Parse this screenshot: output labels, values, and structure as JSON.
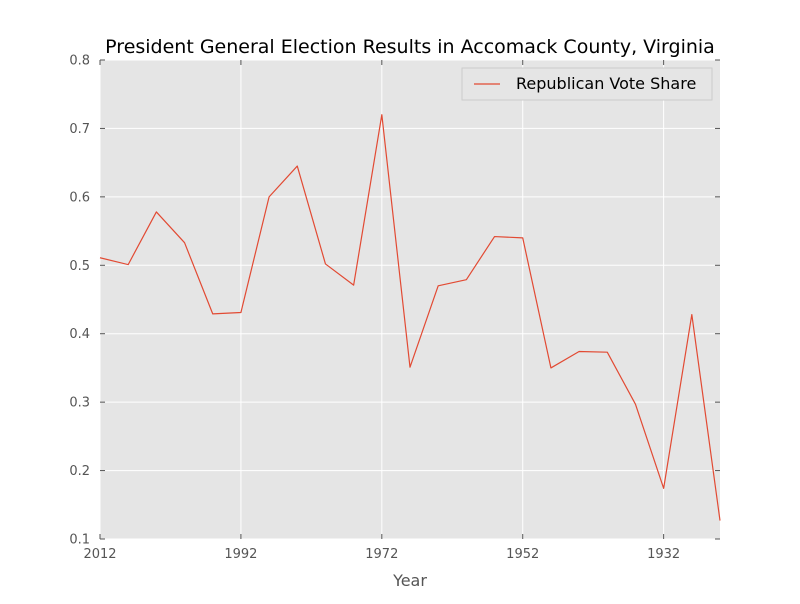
{
  "chart_data": {
    "type": "line",
    "title": "President General Election Results in Accomack County, Virginia",
    "xlabel": "Year",
    "ylabel": "",
    "x_reversed": true,
    "xlim": [
      2012,
      1924
    ],
    "ylim": [
      0.1,
      0.8
    ],
    "xticks": [
      2012,
      1992,
      1972,
      1952,
      1932
    ],
    "yticks": [
      0.1,
      0.2,
      0.3,
      0.4,
      0.5,
      0.6,
      0.7,
      0.8
    ],
    "grid": true,
    "legend_position": "top-right",
    "background_color": "#e5e5e5",
    "grid_color": "#ffffff",
    "series": [
      {
        "name": "Republican Vote Share",
        "color": "#e24a33",
        "x": [
          2012,
          2008,
          2004,
          2000,
          1996,
          1992,
          1988,
          1984,
          1980,
          1976,
          1972,
          1968,
          1964,
          1960,
          1956,
          1952,
          1948,
          1944,
          1940,
          1936,
          1932,
          1928,
          1924
        ],
        "y": [
          0.511,
          0.501,
          0.578,
          0.533,
          0.429,
          0.431,
          0.6,
          0.645,
          0.502,
          0.471,
          0.72,
          0.351,
          0.47,
          0.479,
          0.542,
          0.54,
          0.35,
          0.374,
          0.373,
          0.297,
          0.174,
          0.428,
          0.127
        ]
      }
    ]
  }
}
